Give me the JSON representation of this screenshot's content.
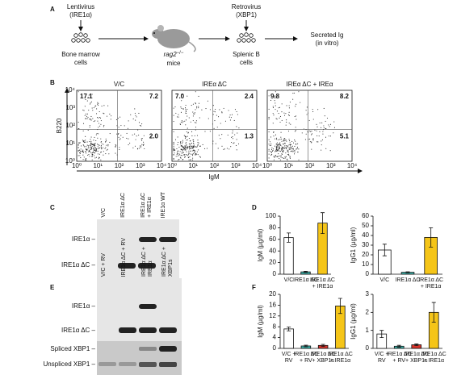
{
  "panel_labels": [
    "A",
    "B",
    "C",
    "D",
    "E",
    "F"
  ],
  "diagram": {
    "lentivirus": [
      "Lentivirus",
      "(IRE1α)"
    ],
    "bone_marrow": [
      "Bone marrow",
      "cells"
    ],
    "mice": {
      "gene": "rag2",
      "superscript": "−/−",
      "text": "mice"
    },
    "retrovirus": [
      "Retrovirus",
      "(XBP1)"
    ],
    "splenic": [
      "Splenic B",
      "cells"
    ],
    "secreted": [
      "Secreted Ig",
      "(in vitro)"
    ]
  },
  "flow": {
    "y_label": "B220",
    "x_label": "IgM",
    "ticks": [
      "10⁰",
      "10¹",
      "10²",
      "10³",
      "10⁴"
    ],
    "plots": [
      {
        "title": "V/C",
        "quadrants": [
          "17.1",
          "7.2",
          "2.0"
        ]
      },
      {
        "title": "IREα ΔC",
        "quadrants": [
          "7.0",
          "2.4",
          "1.3"
        ]
      },
      {
        "title": "IREα ΔC + IREα",
        "quadrants": [
          "9.8",
          "8.2",
          "5.1"
        ]
      }
    ]
  },
  "blot_c": {
    "columns": [
      "V/C",
      "IRE1α ΔC",
      "IRE1α ΔC\n+ IRE1α",
      "IRE1α WT"
    ],
    "rows": [
      "IRE1α –",
      "IRE1α ΔC –"
    ]
  },
  "blot_e": {
    "columns": [
      "V/C + RV",
      "IRE1α ΔC + RV",
      "IRE1α ΔC +\nIRE1α",
      "IRE1α ΔC +\nXBP1s"
    ],
    "rows": [
      "IRE1α –",
      "IRE1α ΔC –",
      "Spliced XBP1 –",
      "Unspliced XBP1 –"
    ]
  },
  "chart_data": [
    {
      "type": "bar",
      "y_label": "IgM (µg/ml)",
      "categories": [
        "V/C",
        "IRE1α ΔC",
        "IRE1α ΔC\n+ IRE1α"
      ],
      "values": [
        63,
        4,
        88
      ],
      "errors": [
        8,
        1,
        18
      ],
      "colors": [
        "#ffffff",
        "#3fb8b0",
        "#f5c518"
      ],
      "ylim": [
        0,
        100
      ],
      "yticks": [
        0,
        20,
        40,
        60,
        80,
        100
      ]
    },
    {
      "type": "bar",
      "y_label": "IgG1 (µg/ml)",
      "categories": [
        "V/C",
        "IRE1α ΔC",
        "IRE1α ΔC\n+ IRE1α"
      ],
      "values": [
        25,
        2,
        38
      ],
      "errors": [
        6,
        0.5,
        10
      ],
      "colors": [
        "#ffffff",
        "#3fb8b0",
        "#f5c518"
      ],
      "ylim": [
        0,
        60
      ],
      "yticks": [
        0,
        10,
        20,
        30,
        40,
        50,
        60
      ]
    },
    {
      "type": "bar",
      "y_label": "IgM (µg/ml)",
      "categories": [
        "V/C +\nRV",
        "IRE1α ΔC\n+ RV",
        "IRE1α ΔC\n+ XBP1s",
        "IRE1α ΔC\n+ IRE1α"
      ],
      "values": [
        7.2,
        0.9,
        1.1,
        15.7
      ],
      "errors": [
        0.7,
        0.3,
        0.4,
        2.8
      ],
      "colors": [
        "#ffffff",
        "#3fb8b0",
        "#d9342b",
        "#f5c518"
      ],
      "ylim": [
        0,
        20
      ],
      "yticks": [
        0,
        4,
        8,
        12,
        16,
        20
      ]
    },
    {
      "type": "bar",
      "y_label": "IgG1 (µg/ml)",
      "categories": [
        "V/C +\nRV",
        "IRE1α ΔC\n+ RV",
        "IRE1α ΔC\n+ XBP1s",
        "IRE1α ΔC\n+ IRE1α"
      ],
      "values": [
        0.8,
        0.12,
        0.2,
        2.0
      ],
      "errors": [
        0.2,
        0.05,
        0.05,
        0.55
      ],
      "colors": [
        "#ffffff",
        "#3fb8b0",
        "#d9342b",
        "#f5c518"
      ],
      "ylim": [
        0,
        3
      ],
      "yticks": [
        0,
        1,
        2,
        3
      ]
    }
  ]
}
